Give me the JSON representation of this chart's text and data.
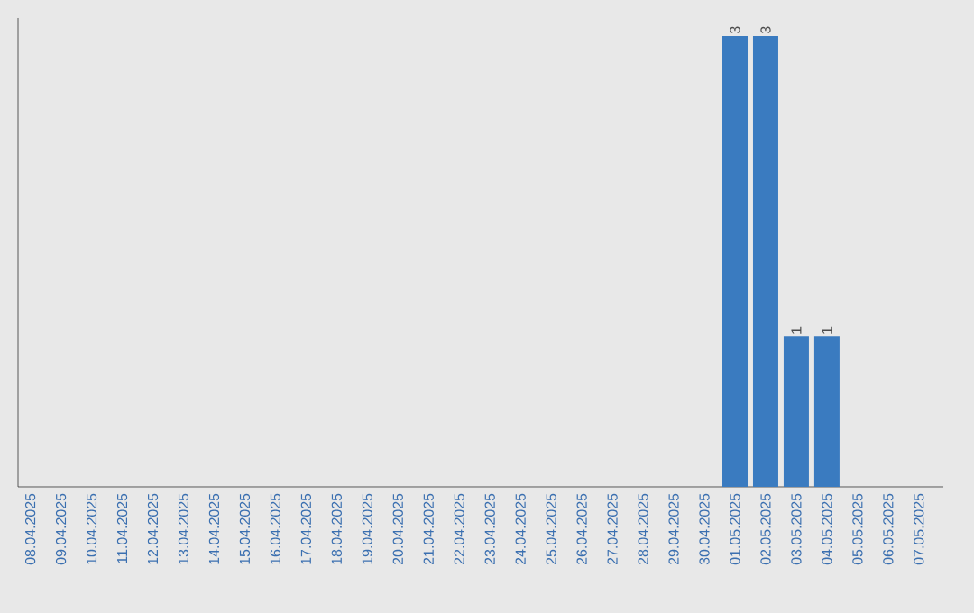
{
  "chart_data": {
    "type": "bar",
    "categories": [
      "08.04.2025",
      "09.04.2025",
      "10.04.2025",
      "11.04.2025",
      "12.04.2025",
      "13.04.2025",
      "14.04.2025",
      "15.04.2025",
      "16.04.2025",
      "17.04.2025",
      "18.04.2025",
      "19.04.2025",
      "20.04.2025",
      "21.04.2025",
      "22.04.2025",
      "23.04.2025",
      "24.04.2025",
      "25.04.2025",
      "26.04.2025",
      "27.04.2025",
      "28.04.2025",
      "29.04.2025",
      "30.04.2025",
      "01.05.2025",
      "02.05.2025",
      "03.05.2025",
      "04.05.2025",
      "05.05.2025",
      "06.05.2025",
      "07.05.2025"
    ],
    "values": [
      null,
      null,
      null,
      null,
      null,
      null,
      null,
      null,
      null,
      null,
      null,
      null,
      null,
      null,
      null,
      null,
      null,
      null,
      null,
      null,
      null,
      null,
      null,
      3,
      3,
      1,
      1,
      null,
      null,
      null
    ],
    "value_labels": [
      null,
      null,
      null,
      null,
      null,
      null,
      null,
      null,
      null,
      null,
      null,
      null,
      null,
      null,
      null,
      null,
      null,
      null,
      null,
      null,
      null,
      null,
      null,
      "3",
      "3",
      "1",
      "1",
      null,
      null,
      null
    ],
    "color": "#3a7bc0"
  }
}
